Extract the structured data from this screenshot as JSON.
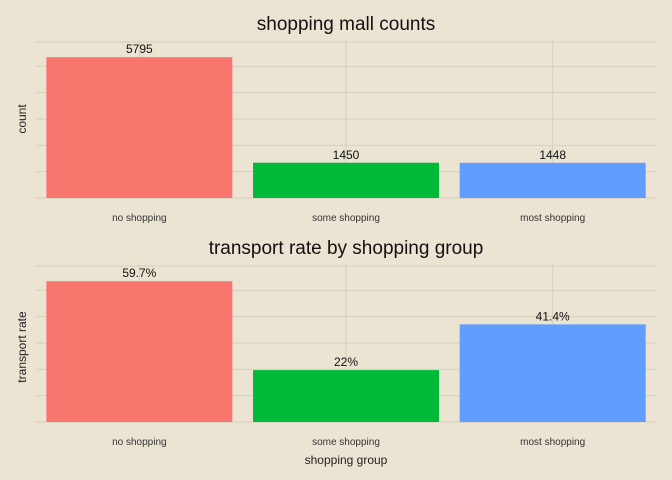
{
  "chart_data": [
    {
      "type": "bar",
      "title": "shopping mall counts",
      "xlabel": "",
      "ylabel": "count",
      "categories": [
        "no shopping",
        "some shopping",
        "most shopping"
      ],
      "values": [
        5795,
        1450,
        1448
      ],
      "data_labels": [
        "5795",
        "1450",
        "1448"
      ],
      "ylim": [
        0,
        6500
      ],
      "grid": true,
      "colors": [
        "#f8766d",
        "#00ba38",
        "#619cff"
      ]
    },
    {
      "type": "bar",
      "title": "transport rate by shopping group",
      "xlabel": "shopping group",
      "ylabel": "transport rate",
      "categories": [
        "no shopping",
        "some shopping",
        "most shopping"
      ],
      "values": [
        59.7,
        22,
        41.4
      ],
      "data_labels": [
        "59.7%",
        "22%",
        "41.4%"
      ],
      "ylim": [
        0,
        67
      ],
      "grid": true,
      "colors": [
        "#f8766d",
        "#00ba38",
        "#619cff"
      ]
    }
  ]
}
